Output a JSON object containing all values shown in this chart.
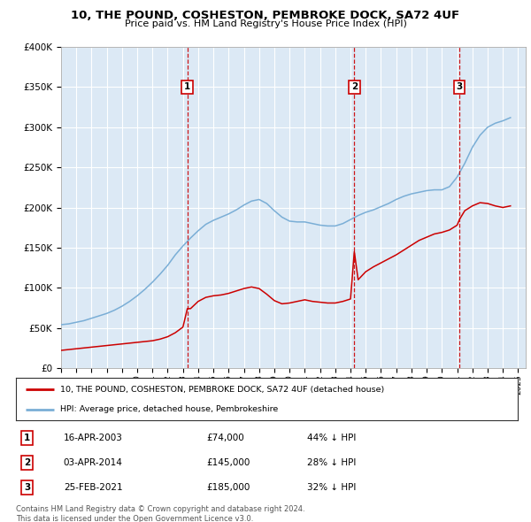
{
  "title": "10, THE POUND, COSHESTON, PEMBROKE DOCK, SA72 4UF",
  "subtitle": "Price paid vs. HM Land Registry's House Price Index (HPI)",
  "ylim": [
    0,
    400000
  ],
  "yticks": [
    0,
    50000,
    100000,
    150000,
    200000,
    250000,
    300000,
    350000,
    400000
  ],
  "ytick_labels": [
    "£0",
    "£50K",
    "£100K",
    "£150K",
    "£200K",
    "£250K",
    "£300K",
    "£350K",
    "£400K"
  ],
  "xmin": 1995.0,
  "xmax": 2025.5,
  "chart_bg": "#dce9f5",
  "fig_bg": "#ffffff",
  "grid_color": "#ffffff",
  "red_line_color": "#cc0000",
  "blue_line_color": "#7aaed6",
  "sale_line_color": "#cc0000",
  "sale_marker_color": "#cc0000",
  "sales": [
    {
      "date_num": 2003.29,
      "price": 74000,
      "label": "1",
      "date_str": "16-APR-2003",
      "pct": "44%"
    },
    {
      "date_num": 2014.25,
      "price": 145000,
      "label": "2",
      "date_str": "03-APR-2014",
      "pct": "28%"
    },
    {
      "date_num": 2021.15,
      "price": 185000,
      "label": "3",
      "date_str": "25-FEB-2021",
      "pct": "32%"
    }
  ],
  "legend_label_red": "10, THE POUND, COSHESTON, PEMBROKE DOCK, SA72 4UF (detached house)",
  "legend_label_blue": "HPI: Average price, detached house, Pembrokeshire",
  "footnote": "Contains HM Land Registry data © Crown copyright and database right 2024.\nThis data is licensed under the Open Government Licence v3.0.",
  "hpi_data": {
    "years": [
      1995,
      1995.5,
      1996,
      1996.5,
      1997,
      1997.5,
      1998,
      1998.5,
      1999,
      1999.5,
      2000,
      2000.5,
      2001,
      2001.5,
      2002,
      2002.5,
      2003,
      2003.5,
      2004,
      2004.5,
      2005,
      2005.5,
      2006,
      2006.5,
      2007,
      2007.5,
      2008,
      2008.5,
      2009,
      2009.5,
      2010,
      2010.5,
      2011,
      2011.5,
      2012,
      2012.5,
      2013,
      2013.5,
      2014,
      2014.5,
      2015,
      2015.5,
      2016,
      2016.5,
      2017,
      2017.5,
      2018,
      2018.5,
      2019,
      2019.5,
      2020,
      2020.5,
      2021,
      2021.5,
      2022,
      2022.5,
      2023,
      2023.5,
      2024,
      2024.5
    ],
    "values": [
      54000,
      55000,
      57000,
      59000,
      62000,
      65000,
      68000,
      72000,
      77000,
      83000,
      90000,
      98000,
      107000,
      117000,
      128000,
      141000,
      152000,
      162000,
      171000,
      179000,
      184000,
      188000,
      192000,
      197000,
      203000,
      208000,
      210000,
      205000,
      196000,
      188000,
      183000,
      182000,
      182000,
      180000,
      178000,
      177000,
      177000,
      180000,
      185000,
      190000,
      194000,
      197000,
      201000,
      205000,
      210000,
      214000,
      217000,
      219000,
      221000,
      222000,
      222000,
      226000,
      238000,
      255000,
      275000,
      290000,
      300000,
      305000,
      308000,
      312000
    ]
  },
  "price_data": {
    "years": [
      1995,
      1995.5,
      1996,
      1996.5,
      1997,
      1997.5,
      1998,
      1998.5,
      1999,
      1999.5,
      2000,
      2000.5,
      2001,
      2001.5,
      2002,
      2002.5,
      2003,
      2003.29,
      2003.5,
      2004,
      2004.5,
      2005,
      2005.5,
      2006,
      2006.5,
      2007,
      2007.5,
      2008,
      2008.5,
      2009,
      2009.5,
      2010,
      2010.5,
      2011,
      2011.5,
      2012,
      2012.5,
      2013,
      2013.5,
      2014,
      2014.25,
      2014.5,
      2015,
      2015.5,
      2016,
      2016.5,
      2017,
      2017.5,
      2018,
      2018.5,
      2019,
      2019.5,
      2020,
      2020.5,
      2021,
      2021.15,
      2021.5,
      2022,
      2022.5,
      2023,
      2023.5,
      2024,
      2024.5
    ],
    "values": [
      22000,
      23000,
      24000,
      25000,
      26000,
      27000,
      28000,
      29000,
      30000,
      31000,
      32000,
      33000,
      34000,
      36000,
      39000,
      44000,
      51000,
      74000,
      74000,
      83000,
      88000,
      90000,
      91000,
      93000,
      96000,
      99000,
      101000,
      99000,
      92000,
      84000,
      80000,
      81000,
      83000,
      85000,
      83000,
      82000,
      81000,
      81000,
      83000,
      86000,
      145000,
      110000,
      120000,
      126000,
      131000,
      136000,
      141000,
      147000,
      153000,
      159000,
      163000,
      167000,
      169000,
      172000,
      178000,
      185000,
      196000,
      202000,
      206000,
      205000,
      202000,
      200000,
      202000
    ]
  }
}
